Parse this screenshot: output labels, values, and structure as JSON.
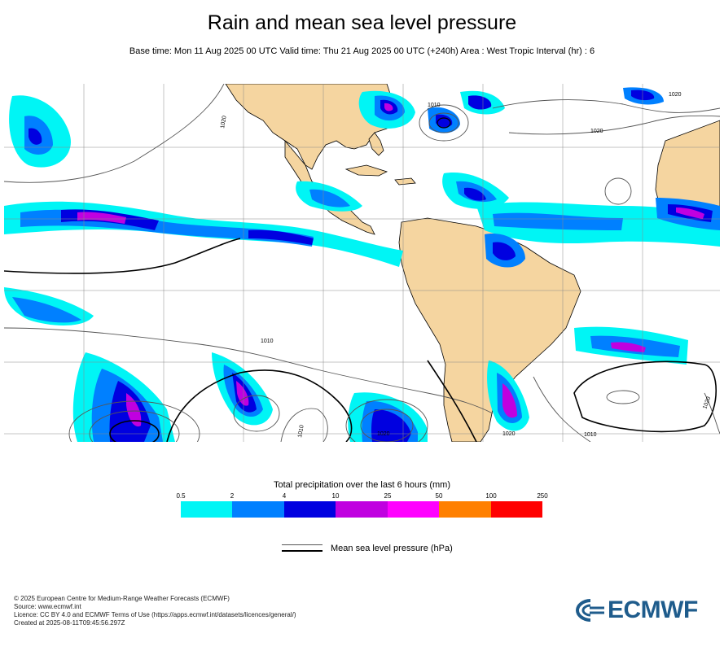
{
  "header": {
    "title": "Rain and mean sea level pressure",
    "subtitle": "Base time: Mon 11 Aug 2025 00 UTC Valid time: Thu 21 Aug 2025 00 UTC (+240h) Area : West Tropic Interval (hr) : 6"
  },
  "map": {
    "contour_labels": [
      "1020",
      "1010",
      "1020",
      "1020",
      "1010",
      "1010",
      "1020",
      "1020",
      "1010",
      "1020"
    ],
    "colors": {
      "land": "#f5d5a0",
      "ocean": "#ffffff",
      "grid": "#888888",
      "isobar": "#555555",
      "isobar_major": "#000000"
    }
  },
  "legend": {
    "precip_title": "Total precipitation over the last 6 hours (mm)",
    "thresholds": [
      "0.5",
      "2",
      "4",
      "10",
      "25",
      "50",
      "100",
      "250"
    ],
    "colors": [
      "#00f5f5",
      "#0080ff",
      "#0000e0",
      "#c000e0",
      "#ff00ff",
      "#ff8000",
      "#ff0000"
    ],
    "pressure_label": "Mean sea level pressure (hPa)"
  },
  "footer": {
    "lines": [
      "© 2025 European Centre for Medium-Range Weather Forecasts (ECMWF)",
      "Source: www.ecmwf.int",
      "Licence: CC BY 4.0 and ECMWF Terms of Use (https://apps.ecmwf.int/datasets/licences/general/)",
      "Created at 2025-08-11T09:45:56.297Z"
    ]
  },
  "logo": {
    "text": "ECMWF",
    "color": "#1f5c8c",
    "icon": "ecmwf-swirl-icon"
  }
}
